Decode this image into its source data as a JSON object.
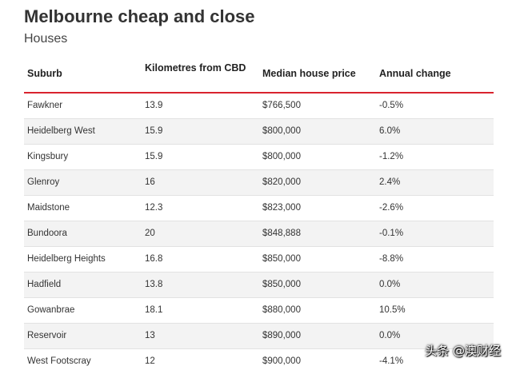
{
  "header": {
    "title": "Melbourne cheap and close",
    "subtitle": "Houses"
  },
  "table": {
    "columns": [
      "Suburb",
      "Kilometres from CBD",
      "Median house price",
      "Annual change"
    ],
    "rows": [
      [
        "Fawkner",
        "13.9",
        "$766,500",
        "-0.5%"
      ],
      [
        "Heidelberg West",
        "15.9",
        "$800,000",
        "6.0%"
      ],
      [
        "Kingsbury",
        "15.9",
        "$800,000",
        "-1.2%"
      ],
      [
        "Glenroy",
        "16",
        "$820,000",
        "2.4%"
      ],
      [
        "Maidstone",
        "12.3",
        "$823,000",
        "-2.6%"
      ],
      [
        "Bundoora",
        "20",
        "$848,888",
        "-0.1%"
      ],
      [
        "Heidelberg Heights",
        "16.8",
        "$850,000",
        "-8.8%"
      ],
      [
        "Hadfield",
        "13.8",
        "$850,000",
        "0.0%"
      ],
      [
        "Gowanbrae",
        "18.1",
        "$880,000",
        "10.5%"
      ],
      [
        "Reservoir",
        "13",
        "$890,000",
        "0.0%"
      ],
      [
        "West Footscray",
        "12",
        "$900,000",
        "-4.1%"
      ]
    ]
  },
  "watermark": "头条 @澳财经",
  "colors": {
    "header_rule": "#d9232e",
    "alt_row": "#f3f3f3"
  }
}
